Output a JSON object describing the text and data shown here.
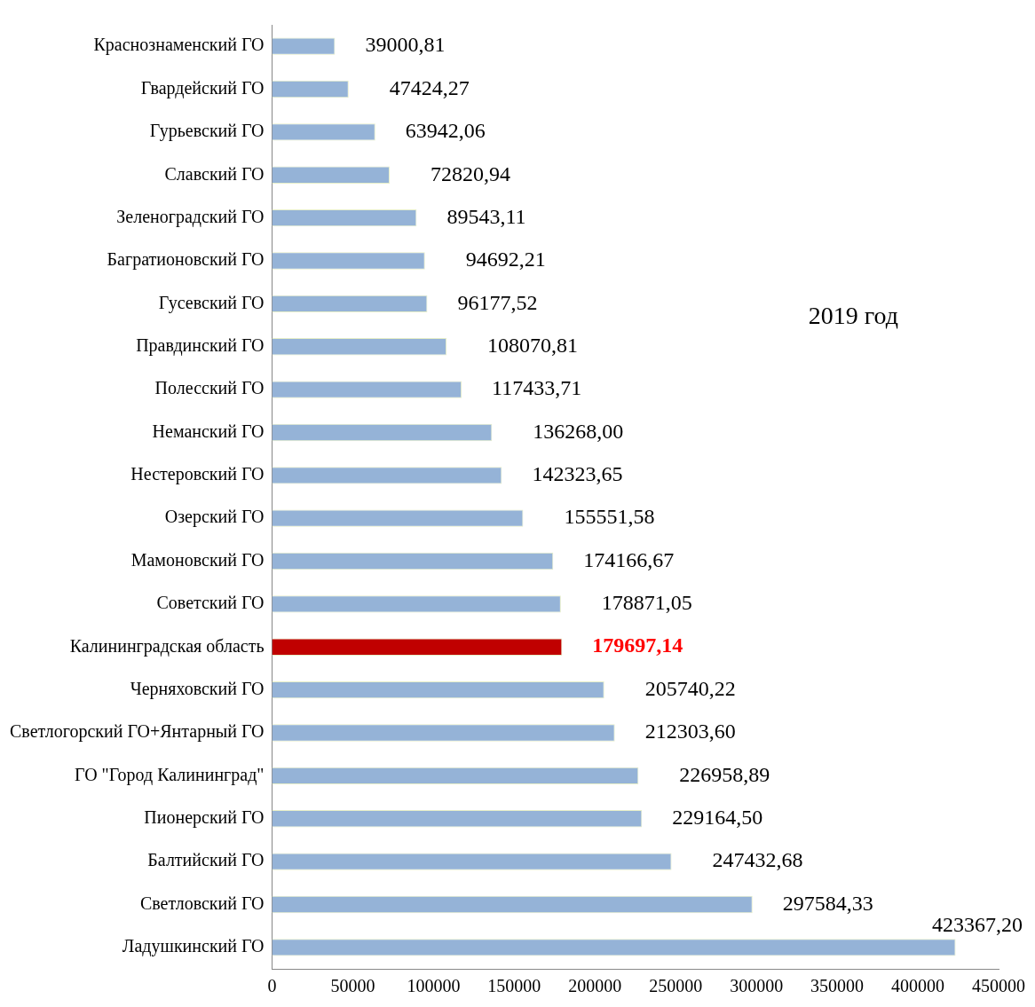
{
  "chart_data": {
    "type": "bar",
    "orientation": "horizontal",
    "categories": [
      "Краснознаменский ГО",
      "Гвардейский ГО",
      "Гурьевский ГО",
      "Славский ГО",
      "Зеленоградский ГО",
      "Багратионовский ГО",
      "Гусевский ГО",
      "Правдинский ГО",
      "Полесский ГО",
      "Неманский ГО",
      "Нестеровский ГО",
      "Озерский ГО",
      "Мамоновский ГО",
      "Советский ГО",
      "Калининградская область",
      "Черняховский ГО",
      "Светлогорский ГО+Янтарный ГО",
      "ГО \"Город Калининград\"",
      "Пионерский ГО",
      "Балтийский ГО",
      "Светловский ГО",
      "Ладушкинский ГО"
    ],
    "values": [
      39000.81,
      47424.27,
      63942.06,
      72820.94,
      89543.11,
      94692.21,
      96177.52,
      108070.81,
      117433.71,
      136268.0,
      142323.65,
      155551.58,
      174166.67,
      178871.05,
      179697.14,
      205740.22,
      212303.6,
      226958.89,
      229164.5,
      247432.68,
      297584.33,
      423367.2
    ],
    "value_labels": [
      "39000,81",
      "47424,27",
      "63942,06",
      "72820,94",
      "89543,11",
      "94692,21",
      "96177,52",
      "108070,81",
      "117433,71",
      "136268,00",
      "142323,65",
      "155551,58",
      "174166,67",
      "178871,05",
      "179697,14",
      "205740,22",
      "212303,60",
      "226958,89",
      "229164,50",
      "247432,68",
      "297584,33",
      "423367,20"
    ],
    "colors": [
      "#95b3d7",
      "#95b3d7",
      "#95b3d7",
      "#95b3d7",
      "#95b3d7",
      "#95b3d7",
      "#95b3d7",
      "#95b3d7",
      "#95b3d7",
      "#95b3d7",
      "#95b3d7",
      "#95b3d7",
      "#95b3d7",
      "#95b3d7",
      "#c00000",
      "#95b3d7",
      "#95b3d7",
      "#95b3d7",
      "#95b3d7",
      "#95b3d7",
      "#95b3d7",
      "#95b3d7"
    ],
    "xlim": [
      0,
      450000
    ],
    "xticks": [
      0,
      50000,
      100000,
      150000,
      200000,
      250000,
      300000,
      350000,
      400000,
      450000
    ],
    "annotations": [
      "2019 год"
    ],
    "grid": false,
    "legend": false
  }
}
